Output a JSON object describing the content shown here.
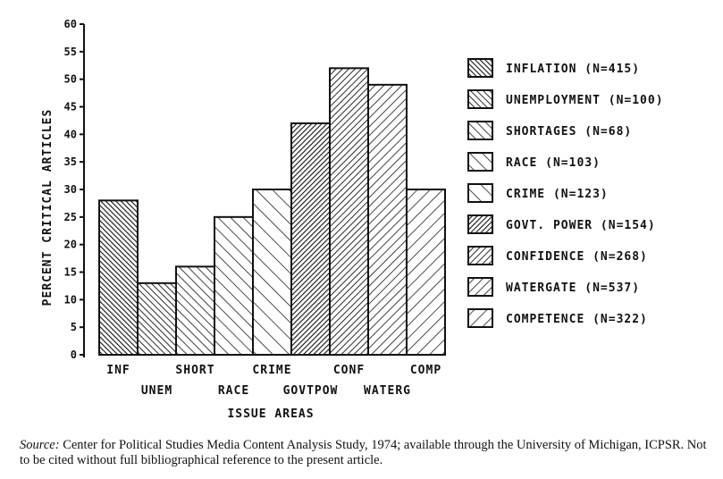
{
  "chart_data": {
    "type": "bar",
    "ylabel": "PERCENT CRITICAL ARTICLES",
    "xlabel": "ISSUE AREAS",
    "ylim": [
      0,
      60
    ],
    "yticks": [
      0,
      5,
      10,
      15,
      20,
      25,
      30,
      35,
      40,
      45,
      50,
      55,
      60
    ],
    "categories": [
      "INF",
      "UNEM",
      "SHORT",
      "RACE",
      "CRIME",
      "GOVTPOW",
      "CONF",
      "WATERG",
      "COMP"
    ],
    "values": [
      28,
      13,
      16,
      25,
      30,
      42,
      52,
      49,
      30
    ],
    "legend": [
      "INFLATION (N=415)",
      "UNEMPLOYMENT (N=100)",
      "SHORTAGES (N=68)",
      "RACE (N=103)",
      "CRIME (N=123)",
      "GOVT. POWER (N=154)",
      "CONFIDENCE (N=268)",
      "WATERGATE (N=537)",
      "COMPETENCE (N=322)"
    ],
    "legend_position": "right",
    "grid": false
  },
  "source": {
    "label": "Source:",
    "text": " Center for Political Studies Media Content Analysis Study, 1974; available through the University of Michigan, ICPSR. Not to be cited without full bibliographical reference to the present article."
  }
}
